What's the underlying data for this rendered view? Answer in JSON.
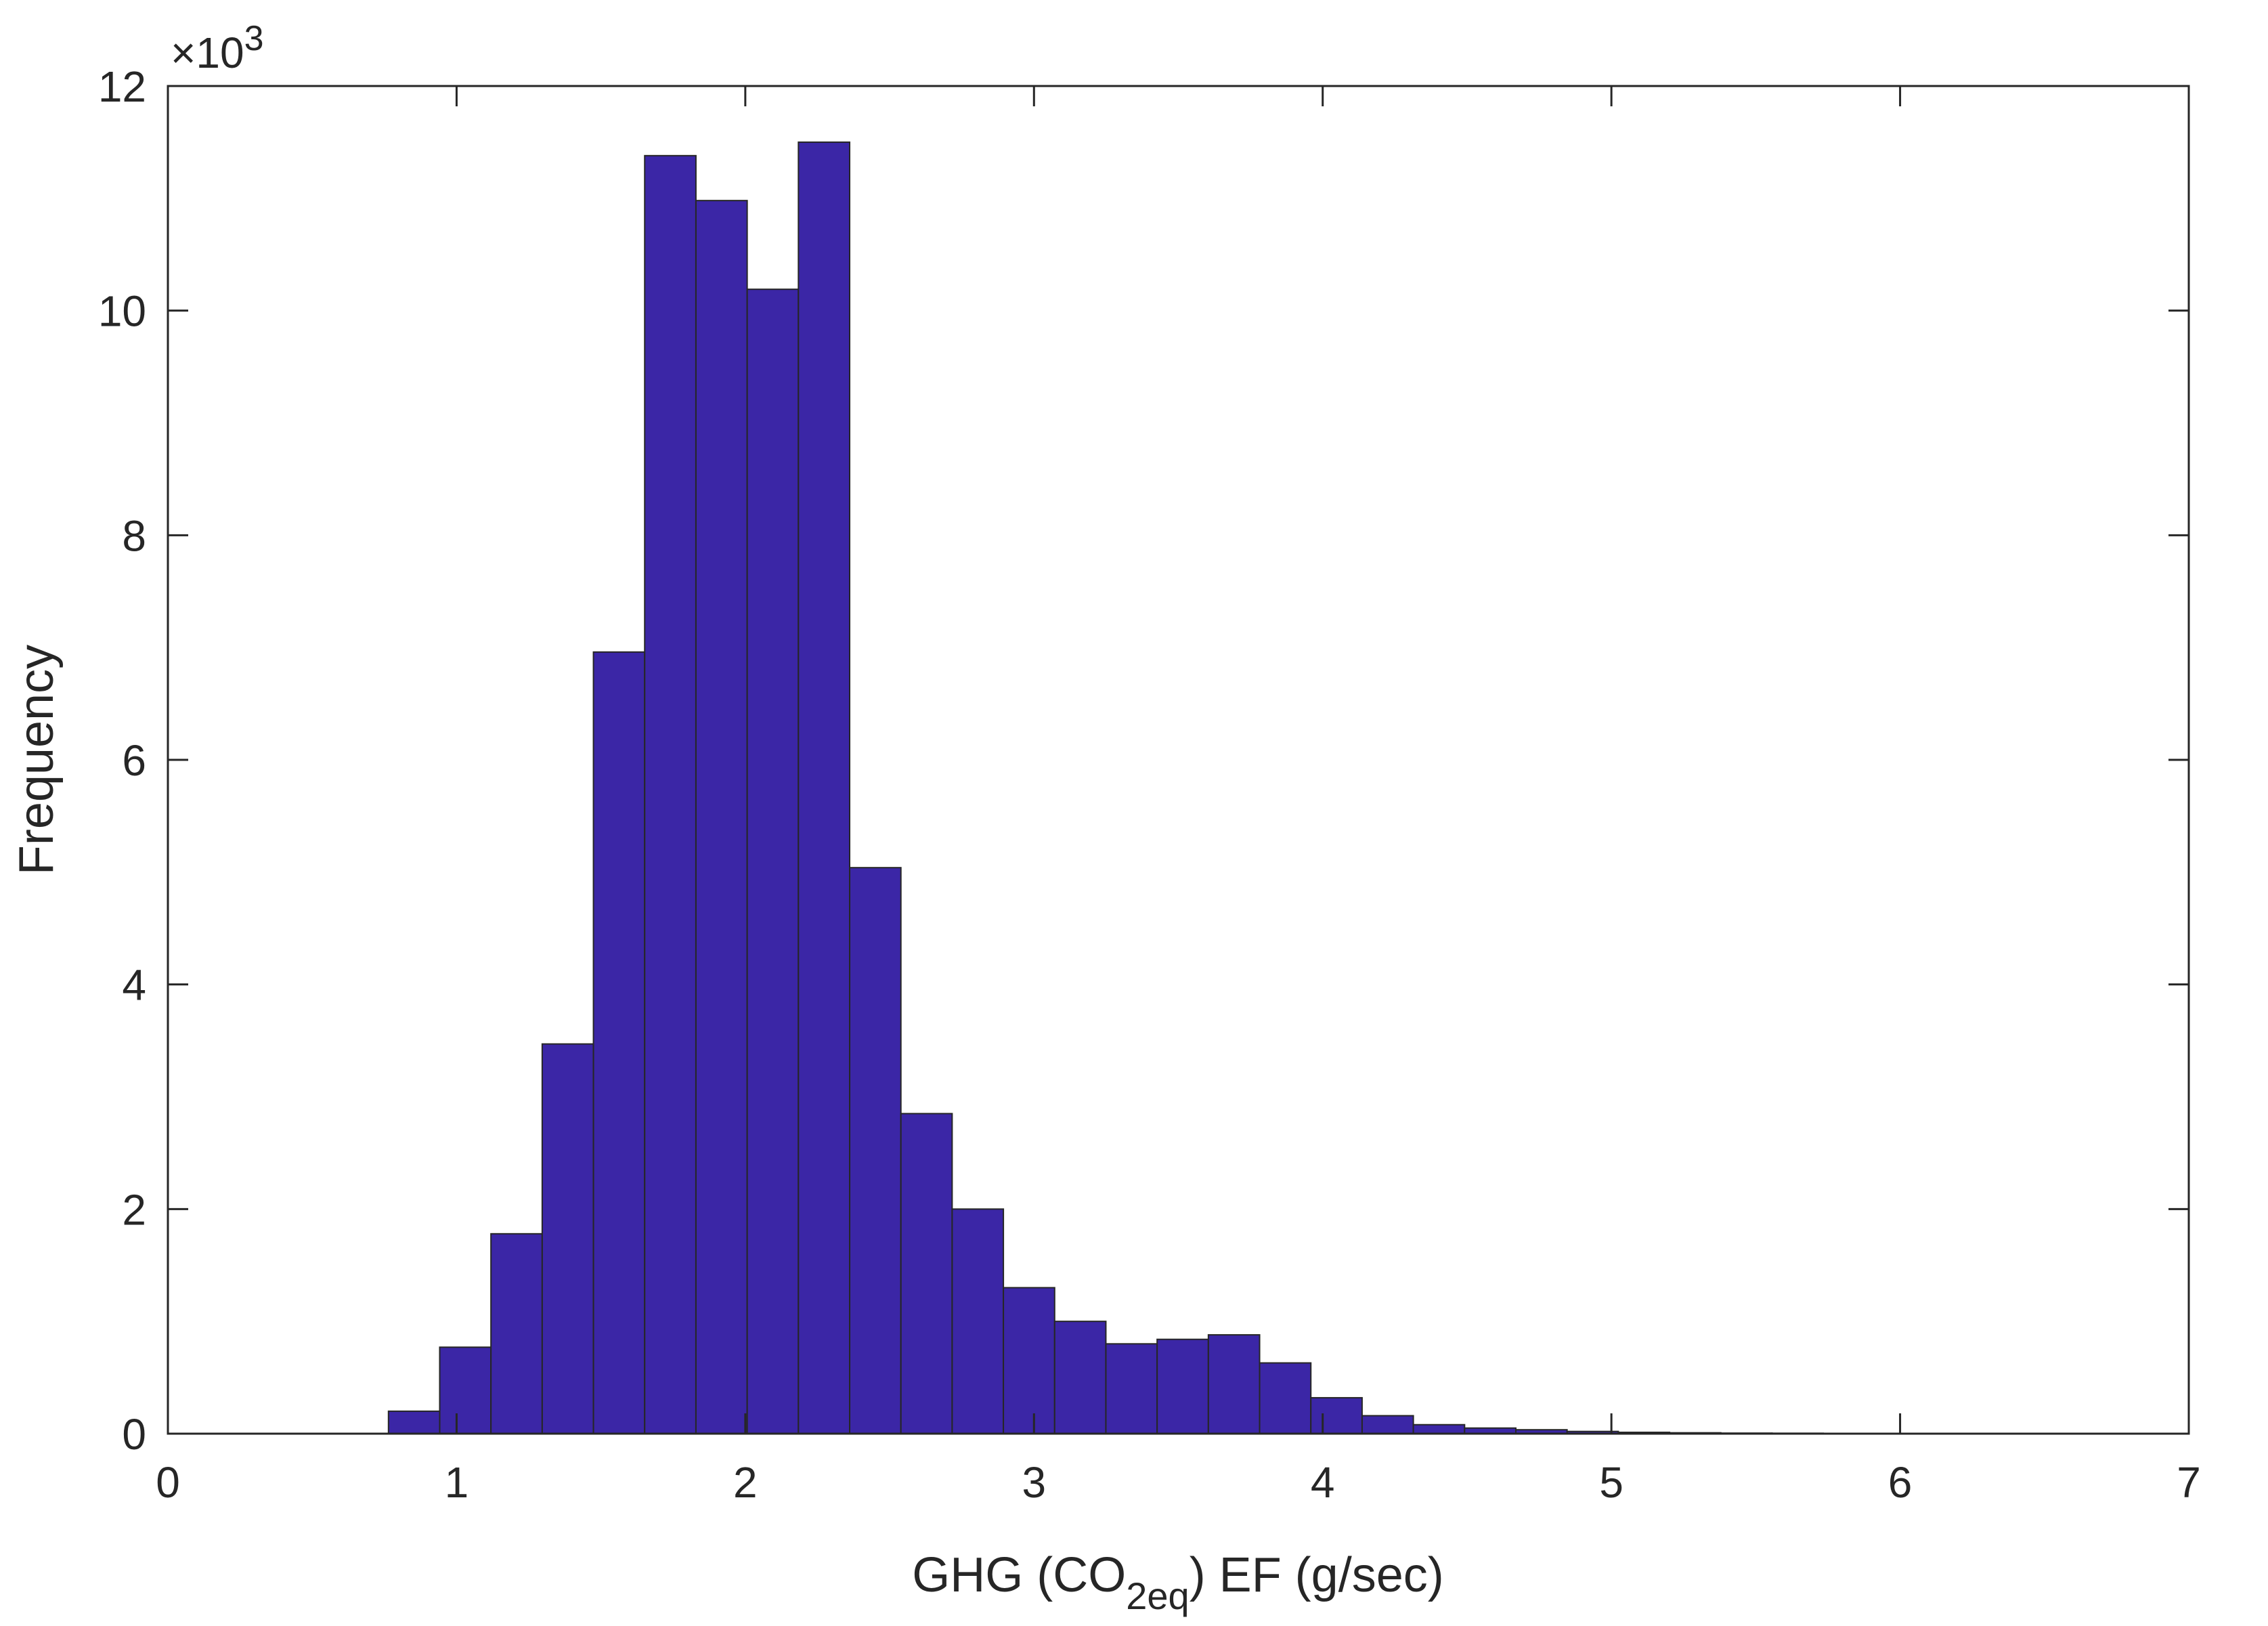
{
  "chart_data": {
    "type": "bar",
    "subtype": "histogram",
    "xlabel": {
      "prefix": "GHG (CO",
      "subscript": "2eq",
      "suffix": ") EF (g/sec)"
    },
    "ylabel": "Frequency",
    "y_multiplier": {
      "times": "×10",
      "exponent": "3"
    },
    "xlim": [
      0,
      7
    ],
    "ylim": [
      0,
      12
    ],
    "xticks": [
      0,
      1,
      2,
      3,
      4,
      5,
      6,
      7
    ],
    "yticks": [
      0,
      2,
      4,
      6,
      8,
      10,
      12
    ],
    "grid": false,
    "bar_color": "#3b26a6",
    "edge_color": "#262626",
    "bin_width": 0.1775,
    "bin_start": 0.764,
    "values": [
      0.2,
      0.77,
      1.78,
      3.47,
      6.96,
      11.38,
      10.98,
      10.19,
      11.5,
      5.04,
      2.85,
      2.0,
      1.3,
      1.0,
      0.8,
      0.84,
      0.88,
      0.63,
      0.32,
      0.16,
      0.08,
      0.05,
      0.035,
      0.02,
      0.012,
      0.008,
      0.005,
      0.004,
      0.003,
      0.002
    ]
  }
}
